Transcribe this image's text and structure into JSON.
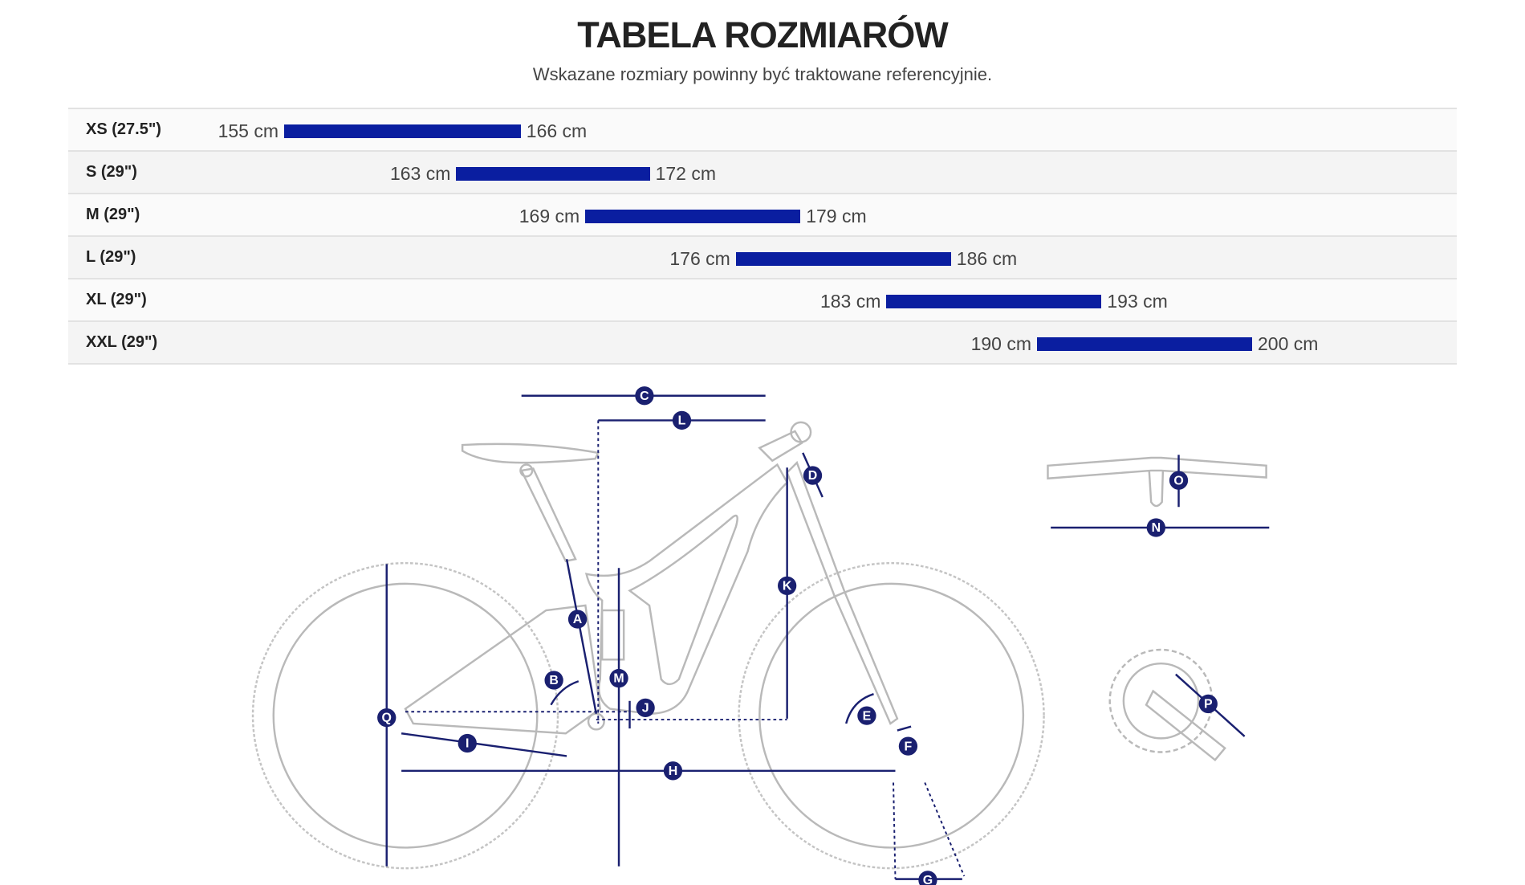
{
  "header": {
    "title": "TABELA ROZMIARÓW",
    "subtitle": "Wskazane rozmiary powinny być traktowane referencyjnie."
  },
  "colors": {
    "bar": "#0a1ea0",
    "dimension": "#1a2070"
  },
  "sizes": [
    {
      "size": "XS (27.5\")",
      "min": 155,
      "max": 166,
      "min_label": "155 cm",
      "max_label": "166 cm"
    },
    {
      "size": "S (29\")",
      "min": 163,
      "max": 172,
      "min_label": "163 cm",
      "max_label": "172 cm"
    },
    {
      "size": "M (29\")",
      "min": 169,
      "max": 179,
      "min_label": "169 cm",
      "max_label": "179 cm"
    },
    {
      "size": "L (29\")",
      "min": 176,
      "max": 186,
      "min_label": "176 cm",
      "max_label": "186 cm"
    },
    {
      "size": "XL (29\")",
      "min": 183,
      "max": 193,
      "min_label": "183 cm",
      "max_label": "193 cm"
    },
    {
      "size": "XXL (29\")",
      "min": 190,
      "max": 200,
      "min_label": "190 cm",
      "max_label": "200 cm"
    }
  ],
  "diagram": {
    "labels": {
      "A": "A",
      "B": "B",
      "C": "C",
      "D": "D",
      "E": "E",
      "F": "F",
      "G": "G",
      "H": "H",
      "I": "I",
      "J": "J",
      "K": "K",
      "L": "L",
      "M": "M",
      "N": "N",
      "O": "O",
      "P": "P",
      "Q": "Q"
    }
  }
}
